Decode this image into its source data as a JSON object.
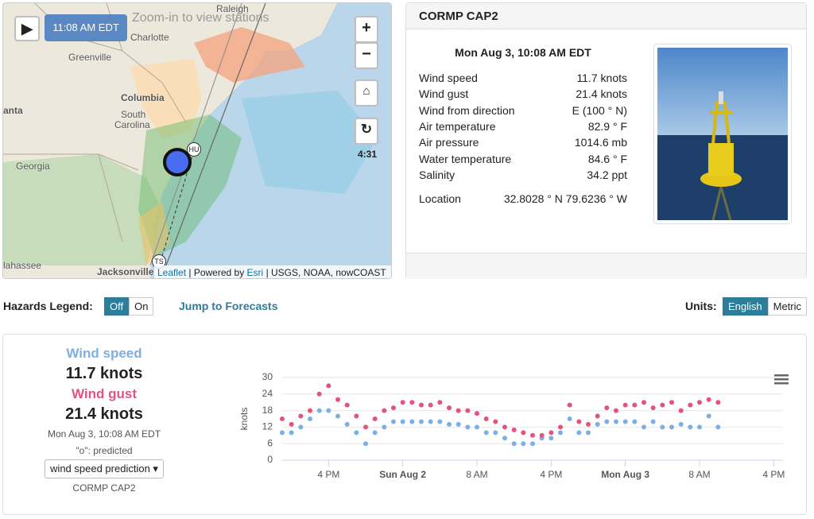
{
  "map": {
    "time": "11:08 AM EDT",
    "hint": "Zoom-in to view stations",
    "loop_time": "4:31",
    "places": [
      "Charlotte",
      "Greenville",
      "Columbia",
      "South",
      "Carolina",
      "Georgia",
      "anta",
      "Jacksonville",
      "lahassee",
      "Raleigh"
    ],
    "storm_markers": [
      "HU",
      "TS"
    ],
    "attribution": {
      "leaflet": "Leaflet",
      "powered": "| Powered by",
      "esri": "Esri",
      "sources": "| USGS, NOAA, nowCOAST"
    }
  },
  "station": {
    "title": "CORMP CAP2",
    "time": "Mon Aug 3, 10:08 AM EDT",
    "rows": [
      [
        "Wind speed",
        "11.7 knots"
      ],
      [
        "Wind gust",
        "21.4 knots"
      ],
      [
        "Wind from direction",
        "E (100 ° N)"
      ],
      [
        "Air temperature",
        "82.9 ° F"
      ],
      [
        "Air pressure",
        "1014.6 mb"
      ],
      [
        "Water temperature",
        "84.6 ° F"
      ],
      [
        "Salinity",
        "34.2 ppt"
      ]
    ],
    "location": [
      "Location",
      "32.8028 ° N 79.6236 ° W"
    ]
  },
  "controls": {
    "hazards_label": "Hazards Legend:",
    "hazards_options": [
      "Off",
      "On"
    ],
    "jump": "Jump to Forecasts",
    "units_label": "Units:",
    "units_options": [
      "English",
      "Metric"
    ]
  },
  "summary": {
    "speed_label": "Wind speed",
    "speed_value": "11.7 knots",
    "gust_label": "Wind gust",
    "gust_value": "21.4 knots",
    "time": "Mon Aug 3, 10:08 AM EDT",
    "note": "\"o\": predicted",
    "select": "wind speed prediction",
    "station": "CORMP CAP2"
  },
  "chart_data": {
    "type": "line",
    "ylabel": "knots",
    "x": [
      11,
      12,
      13,
      14,
      15,
      16,
      17,
      18,
      19,
      20,
      21,
      22,
      23,
      24,
      25,
      26,
      27,
      28,
      29,
      30,
      31,
      32,
      33,
      34,
      35,
      36,
      37,
      38,
      39,
      40,
      41,
      42,
      43,
      44,
      45,
      46,
      47,
      48,
      49,
      50,
      51,
      52,
      53,
      54,
      55,
      56,
      57,
      58
    ],
    "series": [
      {
        "name": "Wind speed",
        "color": "#7cb0e3",
        "values": [
          10,
          10,
          12,
          15,
          18,
          18,
          16,
          13,
          10,
          6,
          10,
          12,
          14,
          14,
          14,
          14,
          14,
          14,
          13,
          13,
          12,
          12,
          10,
          10,
          8,
          6,
          6,
          6,
          8,
          8,
          10,
          15,
          10,
          10,
          13,
          14,
          14,
          14,
          14,
          12,
          14,
          12,
          12,
          13,
          12,
          12,
          16,
          12
        ]
      },
      {
        "name": "Wind gust",
        "color": "#e5527c",
        "values": [
          15,
          13,
          16,
          18,
          24,
          27,
          22,
          20,
          16,
          12,
          15,
          18,
          19,
          21,
          21,
          20,
          20,
          21,
          19,
          18,
          18,
          17,
          15,
          14,
          12,
          11,
          10,
          9,
          9,
          10,
          12,
          20,
          14,
          13,
          16,
          19,
          18,
          20,
          20,
          21,
          19,
          20,
          21,
          18,
          20,
          21,
          22,
          21
        ]
      }
    ],
    "xlim": [
      11,
      65
    ],
    "xticks": [
      {
        "value": 16,
        "label": "4 PM"
      },
      {
        "value": 24,
        "label": "Sun Aug 2"
      },
      {
        "value": 32,
        "label": "8 AM"
      },
      {
        "value": 40,
        "label": "4 PM"
      },
      {
        "value": 48,
        "label": "Mon Aug 3"
      },
      {
        "value": 56,
        "label": "8 AM"
      },
      {
        "value": 64,
        "label": "4 PM"
      }
    ],
    "ylim": [
      0,
      30
    ],
    "yticks": [
      0,
      6,
      12,
      18,
      24,
      30
    ],
    "grid": true
  }
}
